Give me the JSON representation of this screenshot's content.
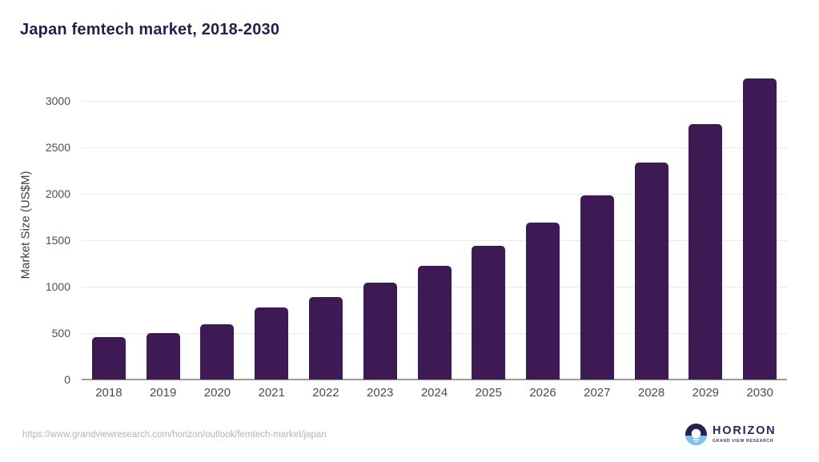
{
  "header": {
    "title": "Japan femtech market, 2018-2030"
  },
  "chart_data": {
    "type": "bar",
    "title": "Japan femtech market, 2018-2030",
    "categories": [
      "2018",
      "2019",
      "2020",
      "2021",
      "2022",
      "2023",
      "2024",
      "2025",
      "2026",
      "2027",
      "2028",
      "2029",
      "2030"
    ],
    "values": [
      455,
      500,
      595,
      775,
      890,
      1040,
      1225,
      1440,
      1690,
      1980,
      2335,
      2750,
      3240
    ],
    "xlabel": "",
    "ylabel": "Market Size (US$M)",
    "ylim": [
      0,
      3500
    ],
    "yticks": [
      0,
      500,
      1000,
      1500,
      2000,
      2500,
      3000
    ],
    "grid": true,
    "legend": false,
    "bar_color": "#3d1a53"
  },
  "colors": {
    "title": "#2d1a4e",
    "bar": "#3d1a53",
    "gridline": "#e9e9e9",
    "axis_line": "#9b9b9b",
    "tick_label": "#4b4b4b",
    "url_text": "#b4b4b4",
    "logo_dark": "#262052",
    "logo_blue": "#7cc5e8"
  },
  "footer": {
    "source_url": "https://www.grandviewresearch.com/horizon/outlook/femtech-market/japan",
    "logo": {
      "title": "HORIZON",
      "subtitle": "GRAND VIEW RESEARCH"
    }
  }
}
